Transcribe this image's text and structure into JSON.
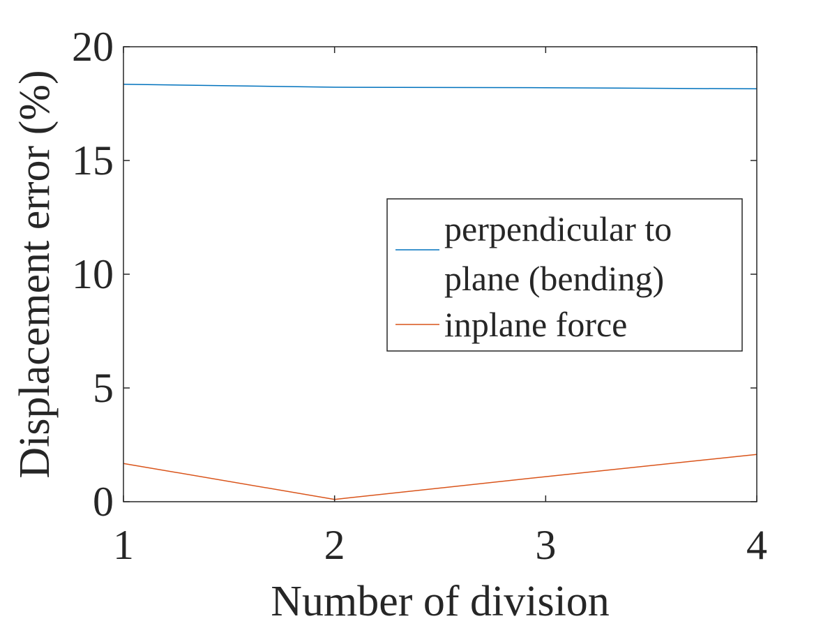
{
  "chart_data": {
    "type": "line",
    "title": "",
    "xlabel": "Number of division",
    "ylabel": "Displacement error (%)",
    "xlim": [
      1,
      4
    ],
    "ylim": [
      0,
      20
    ],
    "x_ticks": [
      1,
      2,
      3,
      4
    ],
    "y_ticks": [
      0,
      5,
      10,
      15,
      20
    ],
    "grid": false,
    "legend_position": "center-right",
    "x": [
      1,
      2,
      3,
      4
    ],
    "series": [
      {
        "name": "perpendicular to plane (bending)",
        "legend_lines": [
          "perpendicular to",
          "plane (bending)"
        ],
        "color": "#0072BD",
        "values": [
          18.35,
          18.22,
          18.2,
          18.15
        ]
      },
      {
        "name": "inplane force",
        "legend_lines": [
          "inplane force"
        ],
        "color": "#D95319",
        "values": [
          1.68,
          0.1,
          1.1,
          2.08
        ]
      }
    ]
  }
}
